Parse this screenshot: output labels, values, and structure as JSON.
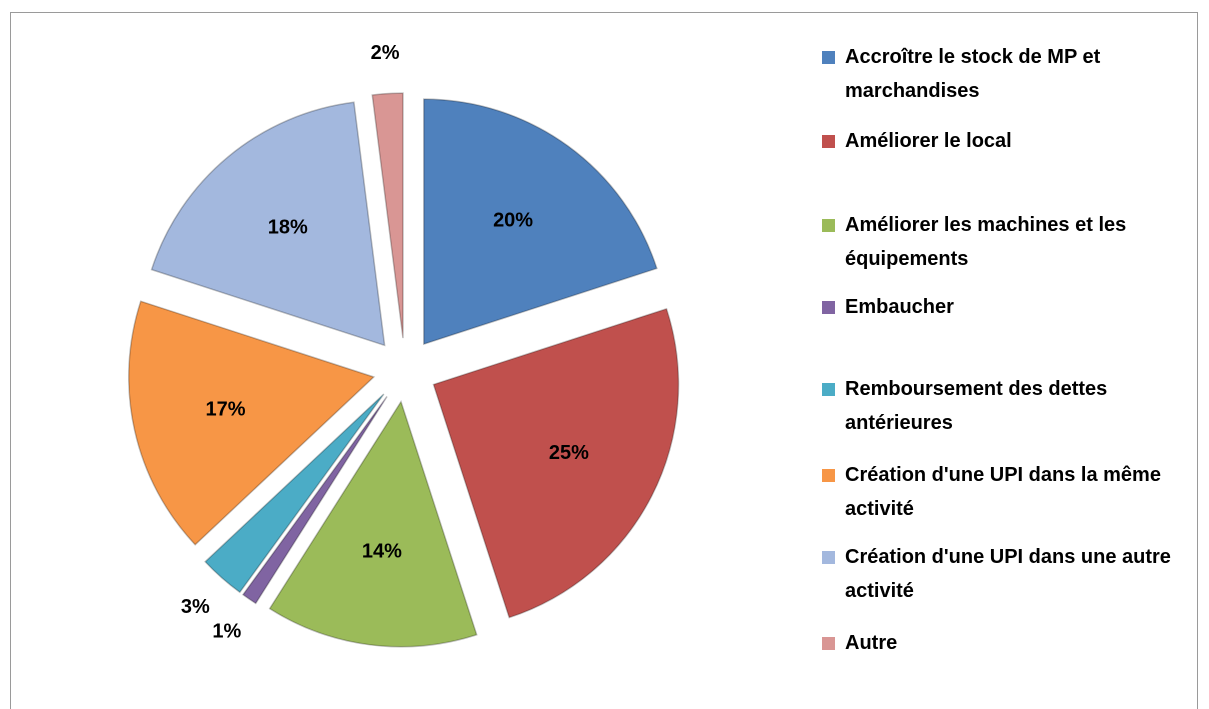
{
  "chart_data": {
    "type": "pie",
    "categories": [
      "Accroître le stock de MP et marchandises",
      "Améliorer le local",
      "Améliorer les machines et les équipements",
      "Embaucher",
      "Remboursement des dettes antérieures",
      "Création d'une UPI dans la même activité",
      "Création d'une UPI dans une autre activité",
      "Autre"
    ],
    "values": [
      20,
      25,
      14,
      1,
      3,
      17,
      18,
      2
    ],
    "value_labels": [
      "20%",
      "25%",
      "14%",
      "1%",
      "3%",
      "17%",
      "18%",
      "2%"
    ],
    "colors": [
      "#4f81bd",
      "#c0504d",
      "#9bbb59",
      "#8064a2",
      "#4bacc6",
      "#f79646",
      "#a3b8de",
      "#d99694"
    ],
    "legend": "right"
  }
}
